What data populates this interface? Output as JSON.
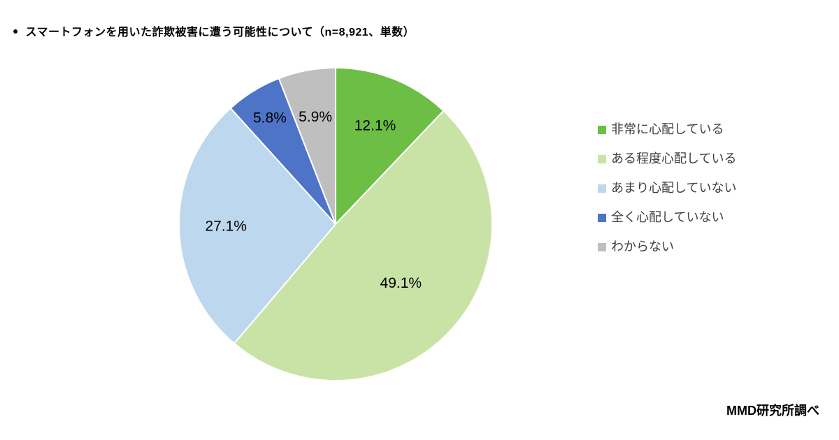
{
  "title": {
    "bullet": "●",
    "text": "スマートフォンを用いた詐欺被害に遭う可能性について（n=8,921、単数）"
  },
  "footer": {
    "source": "MMD研究所調べ"
  },
  "chart_data": {
    "type": "pie",
    "title": "スマートフォンを用いた詐欺被害に遭う可能性について",
    "sample_note": "n=8,921、単数",
    "segments": [
      {
        "label": "非常に心配している",
        "value": 12.1,
        "color": "#6CBE45",
        "label_radius": 0.68
      },
      {
        "label": "ある程度心配している",
        "value": 49.1,
        "color": "#C9E3A6",
        "label_radius": 0.56
      },
      {
        "label": "あまり心配していない",
        "value": 27.1,
        "color": "#BDD7EE",
        "label_radius": 0.7
      },
      {
        "label": "全く心配していない",
        "value": 5.8,
        "color": "#4D74C7",
        "label_radius": 0.8
      },
      {
        "label": "わからない",
        "value": 5.9,
        "color": "#BFBFBF",
        "label_radius": 0.7
      }
    ],
    "layout": {
      "start_angle_deg": 0,
      "direction": "clockwise",
      "legend_position": "right",
      "value_suffix": "%",
      "slice_border_color": "#ffffff"
    }
  }
}
